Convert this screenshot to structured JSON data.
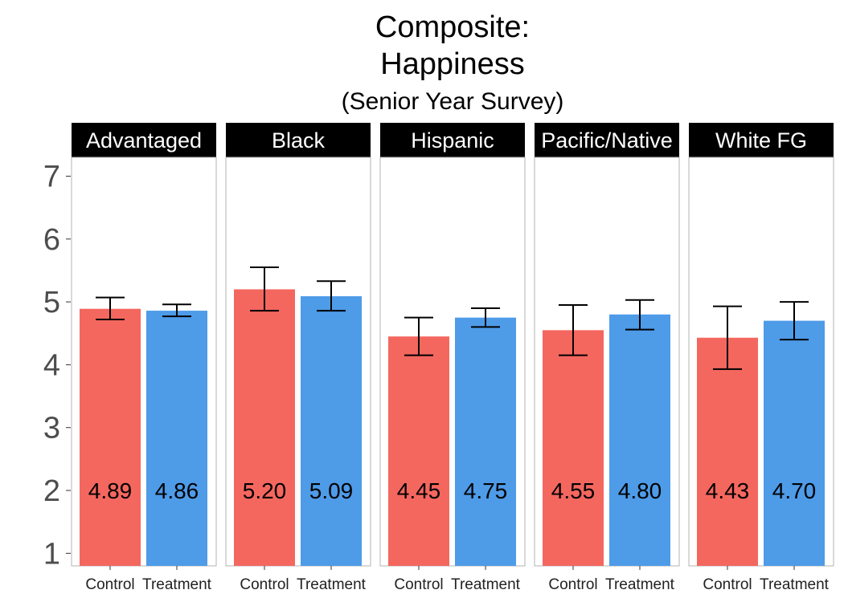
{
  "chart_data": {
    "type": "bar",
    "title": "Composite:",
    "title_line2": "Happiness",
    "subtitle": "(Senior Year Survey)",
    "xlabel": "",
    "ylabel": "",
    "ylim": [
      0.8,
      7.3
    ],
    "yticks": [
      1,
      2,
      3,
      4,
      5,
      6,
      7
    ],
    "categories": [
      "Control",
      "Treatment"
    ],
    "label_y_value": 2,
    "grid": false,
    "colors": {
      "Control": "#f4675f",
      "Treatment": "#4e9be8",
      "strip_bg": "#000000",
      "strip_text": "#ffffff"
    },
    "facets": [
      {
        "name": "Advantaged",
        "values": [
          4.89,
          4.86
        ],
        "labels": [
          "4.89",
          "4.86"
        ],
        "err_low": [
          4.72,
          4.77
        ],
        "err_high": [
          5.07,
          4.96
        ]
      },
      {
        "name": "Black",
        "values": [
          5.2,
          5.09
        ],
        "labels": [
          "5.20",
          "5.09"
        ],
        "err_low": [
          4.86,
          4.86
        ],
        "err_high": [
          5.55,
          5.33
        ]
      },
      {
        "name": "Hispanic",
        "values": [
          4.45,
          4.75
        ],
        "labels": [
          "4.45",
          "4.75"
        ],
        "err_low": [
          4.15,
          4.6
        ],
        "err_high": [
          4.75,
          4.9
        ]
      },
      {
        "name": "Pacific/Native",
        "values": [
          4.55,
          4.8
        ],
        "labels": [
          "4.55",
          "4.80"
        ],
        "err_low": [
          4.15,
          4.56
        ],
        "err_high": [
          4.95,
          5.03
        ]
      },
      {
        "name": "White FG",
        "values": [
          4.43,
          4.7
        ],
        "labels": [
          "4.43",
          "4.70"
        ],
        "err_low": [
          3.93,
          4.4
        ],
        "err_high": [
          4.93,
          5.0
        ]
      }
    ]
  }
}
